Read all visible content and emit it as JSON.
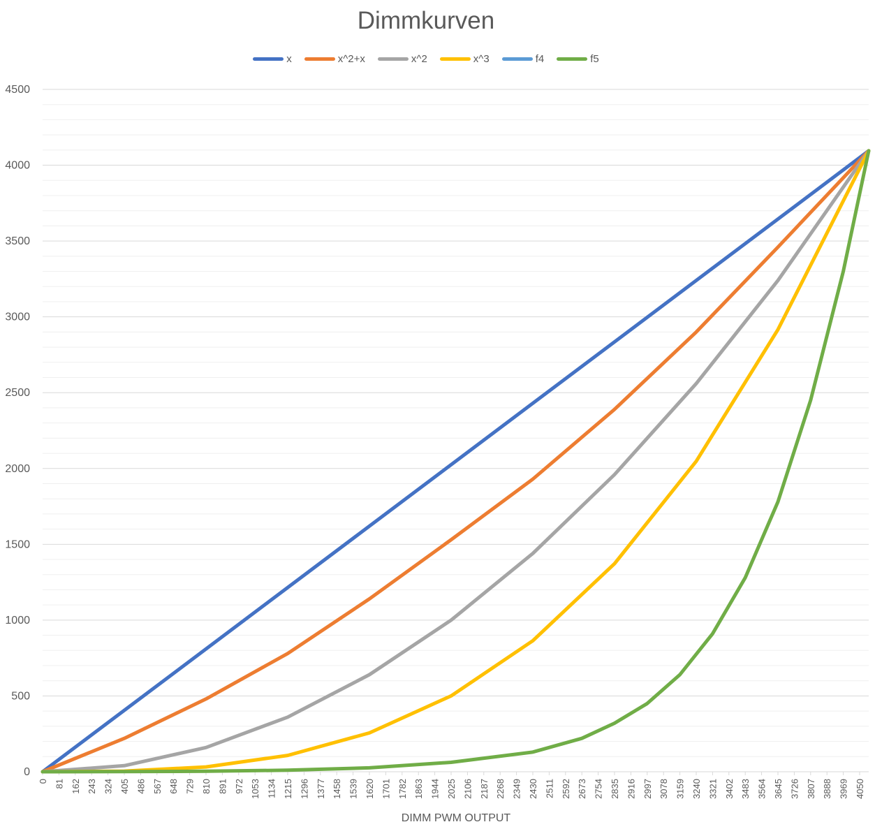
{
  "chart_data": {
    "type": "line",
    "title": "Dimmkurven",
    "xlabel": "DIMM PWM OUTPUT",
    "ylabel": "",
    "ylim": [
      0,
      4500
    ],
    "yticks": [
      0,
      500,
      1000,
      1500,
      2000,
      2500,
      3000,
      3500,
      4000,
      4500
    ],
    "x_range": [
      0,
      4095
    ],
    "x_tick_labels": [
      "0",
      "81",
      "162",
      "243",
      "324",
      "405",
      "486",
      "567",
      "648",
      "729",
      "810",
      "891",
      "972",
      "1053",
      "1134",
      "1215",
      "1296",
      "1377",
      "1458",
      "1539",
      "1620",
      "1701",
      "1782",
      "1863",
      "1944",
      "2025",
      "2106",
      "2187",
      "2268",
      "2349",
      "2430",
      "2511",
      "2592",
      "2673",
      "2754",
      "2835",
      "2916",
      "2997",
      "3078",
      "3159",
      "3240",
      "3321",
      "3402",
      "3483",
      "3564",
      "3645",
      "3726",
      "3807",
      "3888",
      "3969",
      "4050"
    ],
    "gridlines": "horizontal major and minor",
    "legend_position": "top",
    "series": [
      {
        "name": "x",
        "color": "#4472C4",
        "x": [
          0,
          4095
        ],
        "y": [
          0,
          4095
        ]
      },
      {
        "name": "x^2+x",
        "color": "#ED7D31",
        "x": [
          0,
          405,
          810,
          1215,
          1620,
          2025,
          2430,
          2835,
          3240,
          3645,
          4095
        ],
        "y": [
          0,
          220,
          480,
          780,
          1140,
          1530,
          1930,
          2390,
          2900,
          3460,
          4095
        ]
      },
      {
        "name": "x^2",
        "color": "#A5A5A5",
        "x": [
          0,
          405,
          810,
          1215,
          1620,
          2025,
          2430,
          2835,
          3240,
          3645,
          4095
        ],
        "y": [
          0,
          40,
          160,
          360,
          640,
          1000,
          1440,
          1960,
          2560,
          3240,
          4095
        ]
      },
      {
        "name": "x^3",
        "color": "#FFC000",
        "x": [
          0,
          405,
          810,
          1215,
          1620,
          2025,
          2430,
          2835,
          3240,
          3645,
          4095
        ],
        "y": [
          0,
          4,
          32,
          108,
          256,
          500,
          864,
          1372,
          2048,
          2916,
          4095
        ]
      },
      {
        "name": "f4",
        "color": "#5B9BD5",
        "x": [],
        "y": []
      },
      {
        "name": "f5",
        "color": "#70AD47",
        "x": [
          0,
          405,
          810,
          1215,
          1620,
          2025,
          2430,
          2673,
          2835,
          2997,
          3159,
          3321,
          3483,
          3645,
          3807,
          3969,
          4095
        ],
        "y": [
          0,
          1,
          3,
          10,
          26,
          62,
          130,
          220,
          320,
          450,
          640,
          910,
          1280,
          1780,
          2450,
          3300,
          4095
        ]
      }
    ]
  }
}
